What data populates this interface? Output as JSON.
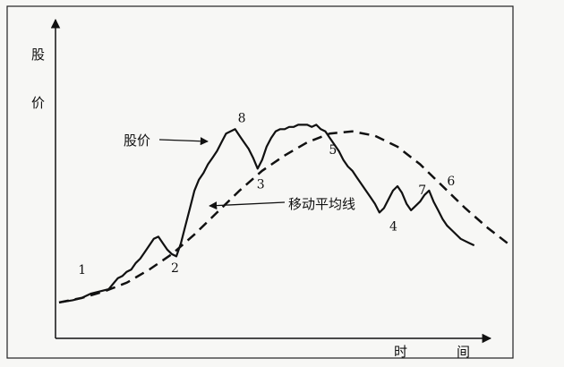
{
  "chart_data": {
    "type": "line",
    "title": "",
    "ylabel_chars": [
      "股",
      "价"
    ],
    "xlabel_chars": [
      "时",
      "间"
    ],
    "grid": false,
    "legend": "none",
    "xlim": [
      0,
      100
    ],
    "ylim": [
      0,
      100
    ],
    "series": [
      {
        "name": "股价",
        "style": "solid",
        "color": "#111111",
        "x": [
          0,
          3,
          5,
          7,
          9,
          11,
          13,
          14,
          15,
          16,
          17,
          18,
          19,
          20,
          21,
          22,
          23,
          24,
          25,
          26,
          27,
          28,
          29,
          30,
          31,
          32,
          33,
          34,
          35,
          36,
          37,
          38,
          39,
          40,
          41,
          42,
          43,
          44,
          45,
          46,
          47,
          48,
          49,
          50,
          51,
          52,
          53,
          54,
          55,
          56,
          57,
          58,
          59,
          60,
          61,
          62,
          63,
          64,
          65,
          66,
          67,
          68,
          69,
          70,
          71,
          72,
          73,
          74,
          75,
          76,
          77,
          78,
          79,
          80,
          81,
          82,
          83,
          84,
          85,
          86,
          87,
          88,
          89,
          90,
          91,
          92
        ],
        "y": [
          7,
          8,
          9,
          11,
          12,
          13,
          18,
          19,
          21,
          22,
          25,
          27,
          30,
          33,
          36,
          37,
          34,
          31,
          29,
          28,
          34,
          42,
          50,
          58,
          63,
          66,
          70,
          73,
          76,
          80,
          84,
          85,
          86,
          83,
          80,
          77,
          73,
          68,
          72,
          78,
          82,
          85,
          86,
          86,
          87,
          87,
          88,
          88,
          88,
          87,
          88,
          86,
          85,
          82,
          79,
          76,
          72,
          69,
          67,
          64,
          61,
          58,
          55,
          52,
          48,
          50,
          54,
          58,
          60,
          57,
          52,
          49,
          51,
          53,
          56,
          58,
          53,
          49,
          45,
          42,
          40,
          38,
          36,
          35,
          34,
          33
        ]
      },
      {
        "name": "移动平均线",
        "style": "dashed",
        "color": "#111111",
        "x": [
          0,
          5,
          10,
          15,
          20,
          25,
          30,
          35,
          40,
          45,
          50,
          55,
          60,
          65,
          70,
          75,
          80,
          85,
          90,
          95,
          100
        ],
        "y": [
          7,
          9,
          12,
          16,
          22,
          29,
          38,
          48,
          58,
          67,
          74,
          80,
          84,
          85,
          83,
          78,
          70,
          60,
          50,
          41,
          33
        ]
      }
    ],
    "annotations": [
      {
        "label": "1",
        "x": 7,
        "y": 11
      },
      {
        "label": "2",
        "x": 24,
        "y": 29
      },
      {
        "label": "3",
        "x": 43,
        "y": 68
      },
      {
        "label": "4",
        "x": 74,
        "y": 48
      },
      {
        "label": "5",
        "x": 61,
        "y": 82
      },
      {
        "label": "6",
        "x": 84,
        "y": 58
      },
      {
        "label": "7",
        "x": 80,
        "y": 53
      },
      {
        "label": "8",
        "x": 40,
        "y": 86
      }
    ],
    "callouts": [
      {
        "text": "股价",
        "target_series": "股价"
      },
      {
        "text": "移动平均线",
        "target_series": "移动平均线"
      }
    ]
  }
}
